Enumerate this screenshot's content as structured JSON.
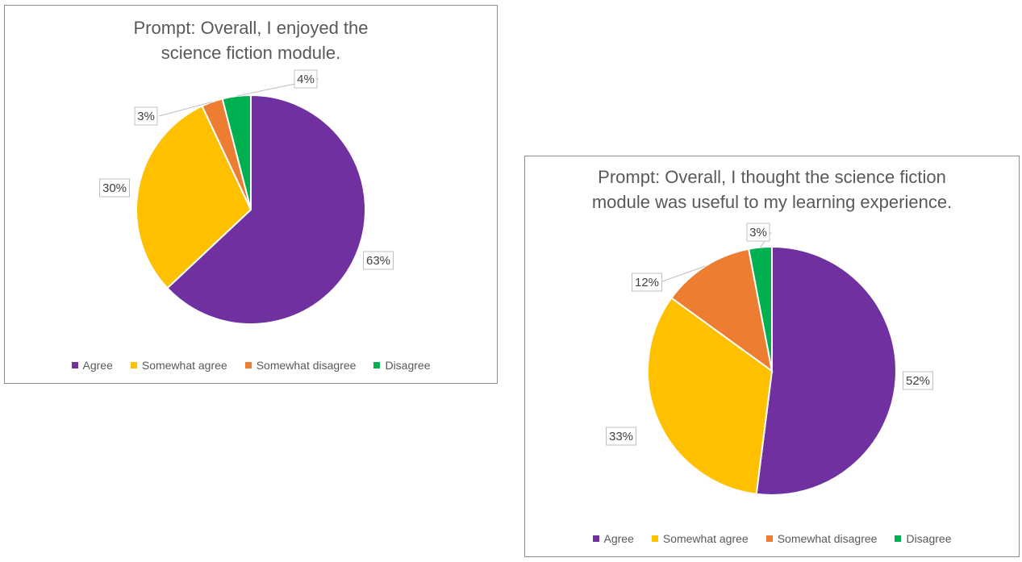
{
  "chart_data": [
    {
      "type": "pie",
      "title_lines": [
        "Prompt: Overall, I enjoyed the",
        "science fiction module."
      ],
      "categories": [
        "Agree",
        "Somewhat agree",
        "Somewhat disagree",
        "Disagree"
      ],
      "values": [
        63,
        30,
        3,
        4
      ],
      "data_labels": [
        "63%",
        "30%",
        "3%",
        "4%"
      ],
      "colors": [
        "#7030A0",
        "#FFC000",
        "#ED7D31",
        "#00B050"
      ],
      "legend_position": "bottom"
    },
    {
      "type": "pie",
      "title_lines": [
        "Prompt: Overall, I thought the science fiction",
        "module was useful to my learning experience."
      ],
      "categories": [
        "Agree",
        "Somewhat agree",
        "Somewhat disagree",
        "Disagree"
      ],
      "values": [
        52,
        33,
        12,
        3
      ],
      "data_labels": [
        "52%",
        "33%",
        "12%",
        "3%"
      ],
      "colors": [
        "#7030A0",
        "#FFC000",
        "#ED7D31",
        "#00B050"
      ],
      "legend_position": "bottom"
    }
  ]
}
